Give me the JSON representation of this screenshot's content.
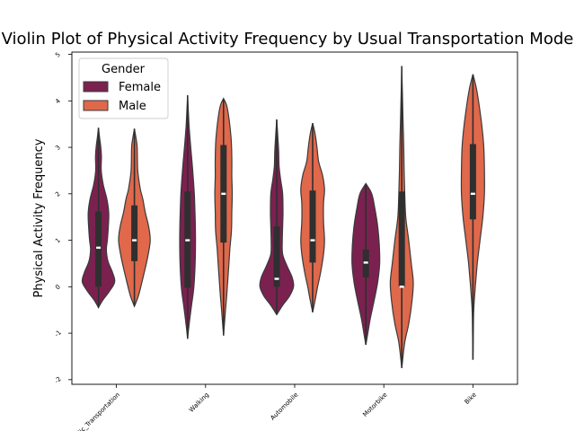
{
  "chart_data": {
    "type": "violin",
    "title": "Violin Plot of Physical Activity Frequency by Usual Transportation Mode",
    "xlabel": "",
    "ylabel": "Physical Activity Frequency",
    "categories": [
      "Public_Transportation",
      "Walking",
      "Automobile",
      "Motorbike",
      "Bike"
    ],
    "ylim": [
      -2.1,
      5.05
    ],
    "yticks": [
      -2,
      -1,
      0,
      1,
      2,
      3,
      4,
      5
    ],
    "grid": false,
    "legend": {
      "title": "Gender",
      "placement": "top-left"
    },
    "series": [
      {
        "name": "Female",
        "color": "#7b2150",
        "violins": [
          {
            "category": "Public_Transportation",
            "min": -0.45,
            "max": 3.42,
            "q1": 0.0,
            "median": 0.84,
            "q3": 1.62,
            "profile": [
              [
                -0.45,
                0
              ],
              [
                -0.3,
                0.2
              ],
              [
                -0.1,
                0.55
              ],
              [
                0.1,
                0.82
              ],
              [
                0.3,
                0.72
              ],
              [
                0.55,
                0.48
              ],
              [
                0.8,
                0.4
              ],
              [
                1.0,
                0.45
              ],
              [
                1.3,
                0.5
              ],
              [
                1.6,
                0.52
              ],
              [
                1.9,
                0.42
              ],
              [
                2.2,
                0.24
              ],
              [
                2.5,
                0.14
              ],
              [
                2.8,
                0.15
              ],
              [
                3.0,
                0.12
              ],
              [
                3.2,
                0.06
              ],
              [
                3.42,
                0
              ]
            ]
          },
          {
            "category": "Walking",
            "min": -1.12,
            "max": 4.12,
            "q1": -0.02,
            "median": 1.0,
            "q3": 2.05,
            "profile": [
              [
                -1.12,
                0
              ],
              [
                -0.8,
                0.08
              ],
              [
                -0.4,
                0.2
              ],
              [
                0.0,
                0.32
              ],
              [
                0.5,
                0.38
              ],
              [
                1.0,
                0.4
              ],
              [
                1.5,
                0.38
              ],
              [
                2.0,
                0.34
              ],
              [
                2.5,
                0.26
              ],
              [
                3.0,
                0.16
              ],
              [
                3.5,
                0.07
              ],
              [
                4.12,
                0
              ]
            ]
          },
          {
            "category": "Automobile",
            "min": -0.6,
            "max": 3.6,
            "q1": 0.0,
            "median": 0.17,
            "q3": 1.3,
            "profile": [
              [
                -0.6,
                0
              ],
              [
                -0.4,
                0.3
              ],
              [
                -0.2,
                0.65
              ],
              [
                0.0,
                0.85
              ],
              [
                0.2,
                0.78
              ],
              [
                0.45,
                0.52
              ],
              [
                0.7,
                0.3
              ],
              [
                1.0,
                0.28
              ],
              [
                1.3,
                0.3
              ],
              [
                1.6,
                0.32
              ],
              [
                2.0,
                0.3
              ],
              [
                2.3,
                0.2
              ],
              [
                2.6,
                0.12
              ],
              [
                2.9,
                0.1
              ],
              [
                3.2,
                0.06
              ],
              [
                3.6,
                0
              ]
            ]
          },
          {
            "category": "Motorbike",
            "min": -1.25,
            "max": 2.22,
            "q1": 0.2,
            "median": 0.52,
            "q3": 0.8,
            "profile": [
              [
                -1.25,
                0
              ],
              [
                -1.0,
                0.1
              ],
              [
                -0.7,
                0.22
              ],
              [
                -0.3,
                0.42
              ],
              [
                0.1,
                0.6
              ],
              [
                0.5,
                0.7
              ],
              [
                0.9,
                0.68
              ],
              [
                1.3,
                0.6
              ],
              [
                1.7,
                0.45
              ],
              [
                2.0,
                0.3
              ],
              [
                2.22,
                0
              ]
            ]
          }
        ]
      },
      {
        "name": "Male",
        "color": "#e0684b",
        "violins": [
          {
            "category": "Public_Transportation",
            "min": -0.42,
            "max": 3.4,
            "q1": 0.55,
            "median": 1.0,
            "q3": 1.75,
            "profile": [
              [
                -0.42,
                0
              ],
              [
                -0.2,
                0.2
              ],
              [
                0.1,
                0.38
              ],
              [
                0.4,
                0.55
              ],
              [
                0.7,
                0.7
              ],
              [
                1.0,
                0.8
              ],
              [
                1.3,
                0.72
              ],
              [
                1.6,
                0.55
              ],
              [
                1.9,
                0.42
              ],
              [
                2.1,
                0.3
              ],
              [
                2.5,
                0.17
              ],
              [
                3.0,
                0.14
              ],
              [
                3.2,
                0.08
              ],
              [
                3.4,
                0
              ]
            ]
          },
          {
            "category": "Walking",
            "min": -1.05,
            "max": 4.05,
            "q1": 0.95,
            "median": 2.0,
            "q3": 3.05,
            "profile": [
              [
                -1.05,
                0
              ],
              [
                -0.6,
                0.08
              ],
              [
                -0.2,
                0.16
              ],
              [
                0.3,
                0.24
              ],
              [
                0.8,
                0.32
              ],
              [
                1.2,
                0.4
              ],
              [
                1.6,
                0.42
              ],
              [
                2.0,
                0.44
              ],
              [
                2.4,
                0.42
              ],
              [
                2.8,
                0.42
              ],
              [
                3.2,
                0.38
              ],
              [
                3.6,
                0.28
              ],
              [
                3.9,
                0.16
              ],
              [
                4.05,
                0
              ]
            ]
          },
          {
            "category": "Automobile",
            "min": -0.55,
            "max": 3.52,
            "q1": 0.52,
            "median": 1.0,
            "q3": 2.07,
            "profile": [
              [
                -0.55,
                0
              ],
              [
                -0.3,
                0.12
              ],
              [
                0.0,
                0.25
              ],
              [
                0.3,
                0.4
              ],
              [
                0.7,
                0.55
              ],
              [
                1.0,
                0.6
              ],
              [
                1.4,
                0.55
              ],
              [
                1.8,
                0.55
              ],
              [
                2.1,
                0.6
              ],
              [
                2.4,
                0.5
              ],
              [
                2.7,
                0.3
              ],
              [
                3.0,
                0.22
              ],
              [
                3.3,
                0.12
              ],
              [
                3.52,
                0
              ]
            ]
          },
          {
            "category": "Motorbike",
            "min": -1.75,
            "max": 4.75,
            "q1": 0.0,
            "median": 0.0,
            "q3": 2.05,
            "profile": [
              [
                -1.75,
                0
              ],
              [
                -1.2,
                0.15
              ],
              [
                -0.8,
                0.35
              ],
              [
                -0.3,
                0.52
              ],
              [
                0.1,
                0.58
              ],
              [
                0.5,
                0.48
              ],
              [
                1.0,
                0.35
              ],
              [
                1.5,
                0.2
              ],
              [
                2.0,
                0.15
              ],
              [
                2.5,
                0.12
              ],
              [
                3.0,
                0.1
              ],
              [
                3.5,
                0.07
              ],
              [
                4.0,
                0.04
              ],
              [
                4.75,
                0
              ]
            ]
          },
          {
            "category": "Bike",
            "min": -1.57,
            "max": 4.57,
            "q1": 1.45,
            "median": 2.0,
            "q3": 3.07,
            "profile": [
              [
                -1.57,
                0
              ],
              [
                -1.0,
                0.02
              ],
              [
                -0.5,
                0.04
              ],
              [
                0.0,
                0.12
              ],
              [
                0.5,
                0.22
              ],
              [
                1.0,
                0.36
              ],
              [
                1.5,
                0.5
              ],
              [
                2.0,
                0.58
              ],
              [
                2.5,
                0.58
              ],
              [
                3.0,
                0.55
              ],
              [
                3.5,
                0.44
              ],
              [
                4.0,
                0.28
              ],
              [
                4.3,
                0.16
              ],
              [
                4.57,
                0
              ]
            ]
          }
        ]
      }
    ]
  }
}
